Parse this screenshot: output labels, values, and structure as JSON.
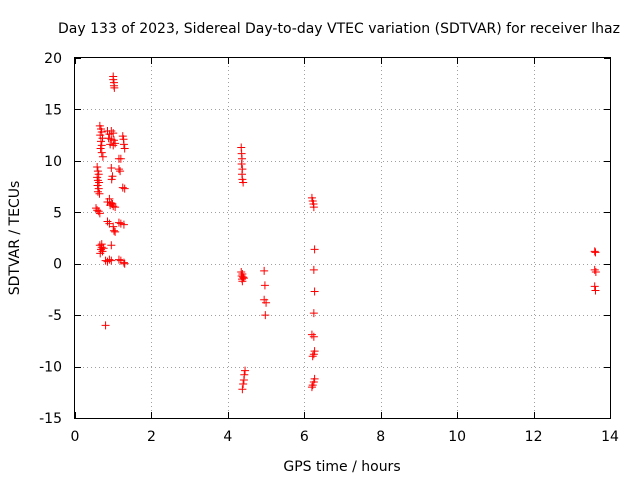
{
  "chart_data": {
    "type": "scatter",
    "title": "Day 133 of 2023, Sidereal Day-to-day VTEC variation (SDTVAR) for receiver lhaz",
    "xlabel": "GPS time / hours",
    "ylabel": "SDTVAR / TECUs",
    "xlim": [
      0,
      14
    ],
    "ylim": [
      -15,
      20
    ],
    "xticks": [
      0,
      2,
      4,
      6,
      8,
      10,
      12,
      14
    ],
    "yticks": [
      -15,
      -10,
      -5,
      0,
      5,
      10,
      15,
      20
    ],
    "grid": true,
    "marker": "+",
    "color": "#ff0000",
    "series": [
      {
        "name": "SDTVAR",
        "points": [
          [
            1.0,
            18.2
          ],
          [
            1.0,
            17.9
          ],
          [
            1.02,
            17.6
          ],
          [
            1.02,
            17.3
          ],
          [
            1.03,
            17.1
          ],
          [
            0.65,
            13.4
          ],
          [
            0.68,
            13.1
          ],
          [
            0.7,
            12.8
          ],
          [
            0.66,
            12.5
          ],
          [
            0.72,
            12.2
          ],
          [
            0.68,
            11.9
          ],
          [
            0.7,
            11.5
          ],
          [
            0.67,
            11.2
          ],
          [
            0.7,
            10.8
          ],
          [
            0.73,
            10.4
          ],
          [
            0.85,
            12.9
          ],
          [
            0.9,
            12.6
          ],
          [
            0.95,
            12.9
          ],
          [
            1.0,
            12.7
          ],
          [
            0.88,
            12.2
          ],
          [
            0.95,
            12.1
          ],
          [
            1.02,
            12.0
          ],
          [
            1.05,
            11.7
          ],
          [
            0.92,
            11.6
          ],
          [
            1.0,
            11.5
          ],
          [
            1.25,
            12.4
          ],
          [
            1.27,
            12.1
          ],
          [
            1.28,
            11.6
          ],
          [
            1.3,
            11.2
          ],
          [
            1.15,
            10.2
          ],
          [
            1.2,
            10.2
          ],
          [
            1.15,
            9.2
          ],
          [
            1.18,
            9.0
          ],
          [
            1.25,
            7.4
          ],
          [
            1.3,
            7.3
          ],
          [
            0.58,
            9.4
          ],
          [
            0.6,
            9.0
          ],
          [
            0.62,
            8.7
          ],
          [
            0.58,
            8.4
          ],
          [
            0.6,
            8.1
          ],
          [
            0.63,
            7.9
          ],
          [
            0.59,
            7.6
          ],
          [
            0.62,
            7.3
          ],
          [
            0.6,
            7.0
          ],
          [
            0.64,
            6.8
          ],
          [
            0.95,
            9.3
          ],
          [
            0.98,
            8.5
          ],
          [
            0.96,
            8.2
          ],
          [
            0.9,
            6.3
          ],
          [
            0.85,
            6.0
          ],
          [
            0.95,
            5.9
          ],
          [
            0.92,
            5.7
          ],
          [
            1.0,
            5.6
          ],
          [
            1.05,
            5.5
          ],
          [
            0.98,
            5.8
          ],
          [
            0.55,
            5.4
          ],
          [
            0.58,
            5.2
          ],
          [
            0.62,
            5.1
          ],
          [
            0.65,
            4.9
          ],
          [
            0.85,
            4.1
          ],
          [
            0.9,
            3.9
          ],
          [
            1.0,
            3.6
          ],
          [
            1.02,
            3.2
          ],
          [
            1.05,
            3.1
          ],
          [
            1.15,
            4.0
          ],
          [
            1.2,
            3.9
          ],
          [
            1.28,
            3.8
          ],
          [
            0.65,
            1.8
          ],
          [
            0.7,
            1.6
          ],
          [
            0.68,
            1.4
          ],
          [
            0.72,
            1.2
          ],
          [
            0.66,
            1.0
          ],
          [
            0.7,
            1.9
          ],
          [
            0.75,
            1.5
          ],
          [
            0.95,
            1.8
          ],
          [
            0.8,
            0.3
          ],
          [
            0.85,
            0.2
          ],
          [
            0.9,
            0.4
          ],
          [
            0.95,
            0.3
          ],
          [
            1.15,
            0.4
          ],
          [
            1.2,
            0.3
          ],
          [
            1.28,
            0.1
          ],
          [
            1.3,
            0.0
          ],
          [
            0.8,
            -6.0
          ],
          [
            4.35,
            11.3
          ],
          [
            4.36,
            10.7
          ],
          [
            4.37,
            10.2
          ],
          [
            4.36,
            9.7
          ],
          [
            4.38,
            9.2
          ],
          [
            4.37,
            8.7
          ],
          [
            4.38,
            8.2
          ],
          [
            4.4,
            7.9
          ],
          [
            4.35,
            -0.8
          ],
          [
            4.38,
            -1.0
          ],
          [
            4.36,
            -1.2
          ],
          [
            4.4,
            -1.3
          ],
          [
            4.37,
            -1.5
          ],
          [
            4.42,
            -1.4
          ],
          [
            4.38,
            -1.7
          ],
          [
            4.45,
            -10.4
          ],
          [
            4.43,
            -10.8
          ],
          [
            4.42,
            -11.3
          ],
          [
            4.4,
            -11.7
          ],
          [
            4.38,
            -12.2
          ],
          [
            4.95,
            -0.7
          ],
          [
            4.97,
            -2.1
          ],
          [
            4.95,
            -3.5
          ],
          [
            5.0,
            -3.8
          ],
          [
            4.98,
            -5.0
          ],
          [
            6.2,
            6.4
          ],
          [
            6.22,
            6.1
          ],
          [
            6.24,
            5.8
          ],
          [
            6.25,
            5.5
          ],
          [
            6.27,
            1.4
          ],
          [
            6.25,
            -0.6
          ],
          [
            6.27,
            -2.7
          ],
          [
            6.25,
            -4.8
          ],
          [
            6.2,
            -6.9
          ],
          [
            6.25,
            -7.1
          ],
          [
            6.27,
            -8.5
          ],
          [
            6.25,
            -8.8
          ],
          [
            6.22,
            -9.0
          ],
          [
            6.27,
            -11.2
          ],
          [
            6.25,
            -11.5
          ],
          [
            6.22,
            -11.8
          ],
          [
            6.2,
            -12.0
          ],
          [
            13.6,
            1.2
          ],
          [
            13.62,
            1.1
          ],
          [
            13.6,
            -0.6
          ],
          [
            13.63,
            -0.8
          ],
          [
            13.6,
            -2.2
          ],
          [
            13.62,
            -2.6
          ]
        ]
      }
    ]
  }
}
